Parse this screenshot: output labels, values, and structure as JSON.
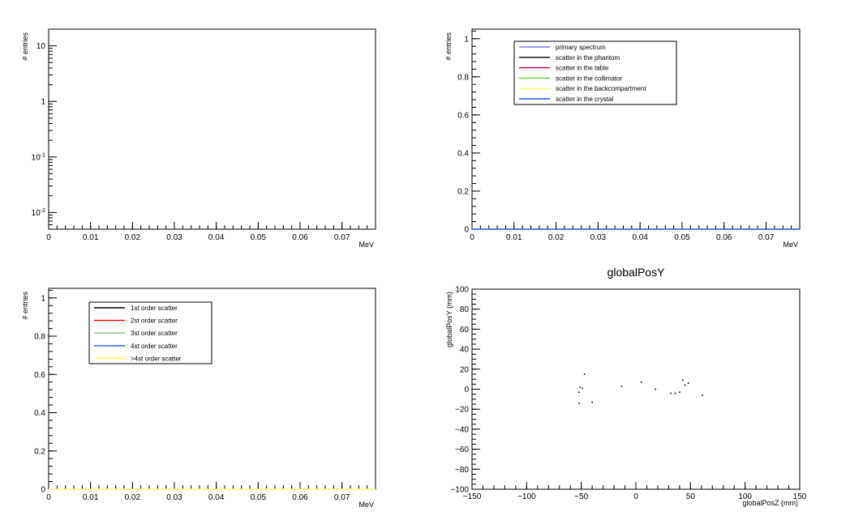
{
  "chart_data": [
    {
      "type": "line",
      "ylabel": "# entries",
      "xlabel": "MeV",
      "xlim": [
        0,
        0.078
      ],
      "ylim": [
        0.005,
        20
      ],
      "log_y": true,
      "x_ticks": [
        "0",
        "0.01",
        "0.02",
        "0.03",
        "0.04",
        "0.05",
        "0.06",
        "0.07"
      ],
      "y_ticks": [
        {
          "mantissa": "10",
          "exp": "-2",
          "value": 0.01
        },
        {
          "mantissa": "10",
          "exp": "-1",
          "value": 0.1
        },
        {
          "mantissa": "1",
          "exp": "",
          "value": 1
        },
        {
          "mantissa": "10",
          "exp": "",
          "value": 10
        }
      ],
      "series": []
    },
    {
      "type": "line",
      "ylabel": "# entries",
      "xlabel": "MeV",
      "xlim": [
        0,
        0.078
      ],
      "ylim": [
        0,
        1.05
      ],
      "x_ticks": [
        "0",
        "0.01",
        "0.02",
        "0.03",
        "0.04",
        "0.05",
        "0.06",
        "0.07"
      ],
      "y_ticks": [
        "0",
        "0.2",
        "0.4",
        "0.6",
        "0.8",
        "1"
      ],
      "legend": [
        {
          "name": "primary spectrum",
          "color": "#7b7bff"
        },
        {
          "name": "scatter in the phantom",
          "color": "#000000"
        },
        {
          "name": "scatter in the table",
          "color": "#c0005a"
        },
        {
          "name": "scatter in the collimator",
          "color": "#66cc33"
        },
        {
          "name": "scatter in the backcompartment",
          "color": "#ffff66"
        },
        {
          "name": "scatter in the crystal",
          "color": "#2255ee"
        }
      ],
      "baseline_color": "#2255ee",
      "values": [
        0
      ]
    },
    {
      "type": "line",
      "ylabel": "# entries",
      "xlabel": "MeV",
      "xlim": [
        0,
        0.078
      ],
      "ylim": [
        0,
        1.05
      ],
      "x_ticks": [
        "0",
        "0.01",
        "0.02",
        "0.03",
        "0.04",
        "0.05",
        "0.06",
        "0.07"
      ],
      "y_ticks": [
        "0",
        "0.2",
        "0.4",
        "0.6",
        "0.8",
        "1"
      ],
      "legend": [
        {
          "name": "1st order scatter",
          "color": "#000000"
        },
        {
          "name": "2st order scatter",
          "color": "#ff0000"
        },
        {
          "name": "3st order scatter",
          "color": "#88bb88"
        },
        {
          "name": "4st order scatter",
          "color": "#2255ee"
        },
        {
          "name": ">4st order scatter",
          "color": "#ffff66"
        }
      ],
      "baseline_color": "#ffff66",
      "values": [
        0
      ]
    },
    {
      "type": "scatter",
      "title": "globalPosY",
      "xlabel": "globalPosZ (mm)",
      "ylabel": "globalPosY (mm)",
      "xlim": [
        -150,
        150
      ],
      "ylim": [
        -100,
        100
      ],
      "x_ticks": [
        "−150",
        "−100",
        "−50",
        "0",
        "50",
        "100",
        "150"
      ],
      "y_ticks": [
        "−100",
        "−80",
        "−60",
        "−40",
        "−20",
        "0",
        "20",
        "40",
        "60",
        "80",
        "100"
      ],
      "points": [
        {
          "x": -52,
          "y": -3
        },
        {
          "x": -51,
          "y": 2
        },
        {
          "x": -49,
          "y": 1
        },
        {
          "x": -47,
          "y": 15
        },
        {
          "x": -52,
          "y": -14
        },
        {
          "x": -40,
          "y": -13
        },
        {
          "x": -13,
          "y": 3
        },
        {
          "x": 5,
          "y": 7
        },
        {
          "x": 18,
          "y": 0
        },
        {
          "x": 32,
          "y": -4
        },
        {
          "x": 36,
          "y": -4
        },
        {
          "x": 40,
          "y": -3
        },
        {
          "x": 43,
          "y": 9
        },
        {
          "x": 45,
          "y": 4
        },
        {
          "x": 48,
          "y": 6
        },
        {
          "x": 61,
          "y": -6
        }
      ]
    }
  ]
}
